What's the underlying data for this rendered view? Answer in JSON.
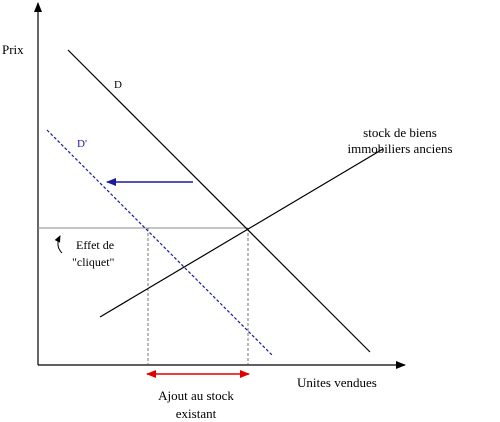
{
  "axes": {
    "y_label": "Prix",
    "x_label": "Unites vendues"
  },
  "curves": {
    "demand": "D",
    "shifted_demand": "D'",
    "supply": [
      "stock de biens",
      "immobiliers anciens"
    ]
  },
  "annotations": {
    "ratchet": [
      "Effet de",
      "\"cliquet\""
    ],
    "stock_addition": [
      "Ajout au stock",
      "existant"
    ]
  }
}
